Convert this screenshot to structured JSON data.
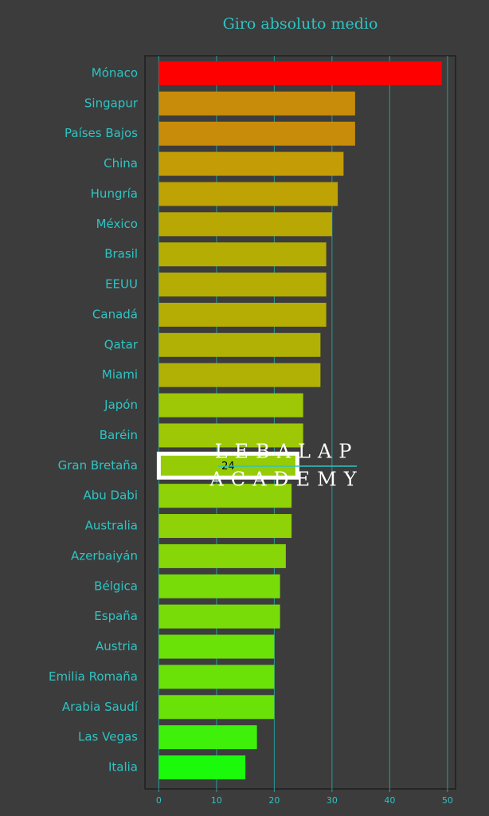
{
  "chart_data": {
    "type": "barh",
    "title": "Giro absoluto medio",
    "categories": [
      "Mónaco",
      "Singapur",
      "Países Bajos",
      "China",
      "Hungría",
      "México",
      "Brasil",
      "EEUU",
      "Canadá",
      "Qatar",
      "Miami",
      "Japón",
      "Baréin",
      "Gran Bretaña",
      "Abu Dabi",
      "Australia",
      "Azerbaiyán",
      "Bélgica",
      "España",
      "Austria",
      "Emilia Romaña",
      "Arabia Saudí",
      "Las Vegas",
      "Italia"
    ],
    "values": [
      49,
      34,
      34,
      32,
      31,
      30,
      29,
      29,
      29,
      28,
      28,
      25,
      25,
      24,
      23,
      23,
      22,
      21,
      21,
      20,
      20,
      20,
      17,
      15
    ],
    "colors": [
      "#ff0000",
      "#c98c0a",
      "#c98c0a",
      "#c49c06",
      "#bfa204",
      "#b9a804",
      "#b5ad04",
      "#b5ad04",
      "#b5ad04",
      "#b0b005",
      "#b0b005",
      "#9ec805",
      "#9ec805",
      "#95cc05",
      "#8ed207",
      "#8ed207",
      "#86d608",
      "#78dc08",
      "#78dc08",
      "#6ae208",
      "#6ae208",
      "#6ae208",
      "#3ef00a",
      "#1cfa0c"
    ],
    "highlight_index": 13,
    "xlim": [
      -2.4,
      51.4
    ],
    "xticks": [
      0,
      10,
      20,
      30,
      40,
      50
    ],
    "grid": true,
    "watermark": [
      "LEBALAP",
      "ACADEMY"
    ]
  }
}
